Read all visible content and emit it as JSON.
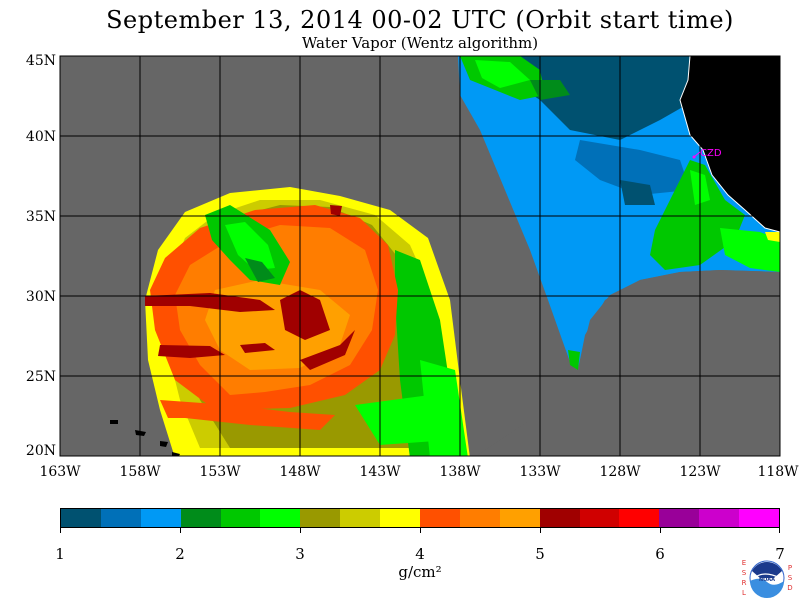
{
  "header": {
    "title": "September 13, 2014  00-02 UTC  (Orbit start time)",
    "subtitle": "Water Vapor (Wentz algorithm)"
  },
  "map": {
    "lat_labels": [
      "45N",
      "40N",
      "35N",
      "30N",
      "25N",
      "20N"
    ],
    "lon_labels": [
      "163W",
      "158W",
      "153W",
      "148W",
      "143W",
      "138W",
      "133W",
      "128W",
      "123W",
      "118W"
    ],
    "station_label": "CZD"
  },
  "colorbar": {
    "colors": [
      "#005170",
      "#0070b8",
      "#0099f5",
      "#008c1a",
      "#00c800",
      "#00ff00",
      "#999900",
      "#cccc00",
      "#ffff00",
      "#ff5000",
      "#ff7d00",
      "#ffa000",
      "#a00000",
      "#d00000",
      "#ff0000",
      "#990099",
      "#cc00cc",
      "#ff00ff"
    ],
    "tick_labels": [
      "1",
      "2",
      "3",
      "4",
      "5",
      "6",
      "7"
    ],
    "unit": "g/cm²"
  },
  "logo": {
    "left_letters": "ESRL",
    "right_letters": "PSD",
    "text": "NOAA"
  }
}
